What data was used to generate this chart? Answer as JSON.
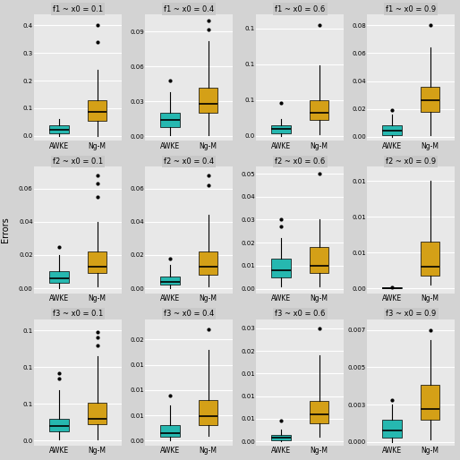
{
  "titles": [
    [
      "f1 ~ x0 = 0.1",
      "f1 ~ x0 = 0.4",
      "f1 ~ x0 = 0.6",
      "f1 ~ x0 = 0.9"
    ],
    [
      "f2 ~ x0 = 0.1",
      "f2 ~ x0 = 0.4",
      "f2 ~ x0 = 0.6",
      "f2 ~ x0 = 0.9"
    ],
    [
      "f3 ~ x0 = 0.1",
      "f3 ~ x0 = 0.4",
      "f3 ~ x0 = 0.6",
      "f3 ~ x0 = 0.9"
    ]
  ],
  "ylabel": "Errors",
  "colors": [
    "#26B8B0",
    "#D4A017"
  ],
  "categories": [
    "AWKE",
    "Ng-M"
  ],
  "fig_bg": "#D3D3D3",
  "panel_bg": "#E8E8E8",
  "title_bg": "#C8C8C8",
  "boxes": {
    "f1": {
      "x0=0.1": {
        "AWKE": {
          "q1": 0.01,
          "median": 0.022,
          "q3": 0.038,
          "whislo": 0.0,
          "whishi": 0.062,
          "fliers": []
        },
        "NgM": {
          "q1": 0.055,
          "median": 0.085,
          "q3": 0.13,
          "whislo": 0.0,
          "whishi": 0.24,
          "fliers": [
            0.34,
            0.4
          ]
        }
      },
      "x0=0.4": {
        "AWKE": {
          "q1": 0.008,
          "median": 0.014,
          "q3": 0.02,
          "whislo": 0.001,
          "whishi": 0.038,
          "fliers": [
            0.048
          ]
        },
        "NgM": {
          "q1": 0.02,
          "median": 0.028,
          "q3": 0.042,
          "whislo": 0.001,
          "whishi": 0.082,
          "fliers": [
            0.092,
            0.1
          ]
        }
      },
      "x0=0.6": {
        "AWKE": {
          "q1": 0.003,
          "median": 0.01,
          "q3": 0.015,
          "whislo": 0.0,
          "whishi": 0.024,
          "fliers": [
            0.046
          ]
        },
        "NgM": {
          "q1": 0.022,
          "median": 0.032,
          "q3": 0.05,
          "whislo": 0.002,
          "whishi": 0.098,
          "fliers": [
            0.155
          ]
        }
      },
      "x0=0.9": {
        "AWKE": {
          "q1": 0.001,
          "median": 0.004,
          "q3": 0.008,
          "whislo": 0.0,
          "whishi": 0.016,
          "fliers": [
            0.019
          ]
        },
        "NgM": {
          "q1": 0.018,
          "median": 0.026,
          "q3": 0.036,
          "whislo": 0.001,
          "whishi": 0.064,
          "fliers": [
            0.08
          ]
        }
      }
    },
    "f2": {
      "x0=0.1": {
        "AWKE": {
          "q1": 0.003,
          "median": 0.006,
          "q3": 0.01,
          "whislo": 0.0,
          "whishi": 0.02,
          "fliers": [
            0.025
          ]
        },
        "NgM": {
          "q1": 0.009,
          "median": 0.013,
          "q3": 0.022,
          "whislo": 0.001,
          "whishi": 0.04,
          "fliers": [
            0.055,
            0.063,
            0.068
          ]
        }
      },
      "x0=0.4": {
        "AWKE": {
          "q1": 0.002,
          "median": 0.004,
          "q3": 0.007,
          "whislo": 0.0,
          "whishi": 0.014,
          "fliers": [
            0.018
          ]
        },
        "NgM": {
          "q1": 0.008,
          "median": 0.013,
          "q3": 0.022,
          "whislo": 0.001,
          "whishi": 0.044,
          "fliers": [
            0.062,
            0.068
          ]
        }
      },
      "x0=0.6": {
        "AWKE": {
          "q1": 0.005,
          "median": 0.008,
          "q3": 0.013,
          "whislo": 0.001,
          "whishi": 0.022,
          "fliers": [
            0.027,
            0.03
          ]
        },
        "NgM": {
          "q1": 0.007,
          "median": 0.01,
          "q3": 0.018,
          "whislo": 0.001,
          "whishi": 0.03,
          "fliers": [
            0.05
          ]
        }
      },
      "x0=0.9": {
        "AWKE": {
          "q1": 0.0,
          "median": 5e-05,
          "q3": 0.0001,
          "whislo": 0.0,
          "whishi": 0.00015,
          "fliers": [
            0.00018
          ]
        },
        "NgM": {
          "q1": 0.0018,
          "median": 0.003,
          "q3": 0.0065,
          "whislo": 0.0005,
          "whishi": 0.015,
          "fliers": []
        }
      }
    },
    "f3": {
      "x0=0.1": {
        "AWKE": {
          "q1": 0.012,
          "median": 0.02,
          "q3": 0.03,
          "whislo": 0.001,
          "whishi": 0.068,
          "fliers": [
            0.085,
            0.092
          ]
        },
        "NgM": {
          "q1": 0.022,
          "median": 0.03,
          "q3": 0.052,
          "whislo": 0.001,
          "whishi": 0.115,
          "fliers": [
            0.13,
            0.14,
            0.148
          ]
        }
      },
      "x0=0.4": {
        "AWKE": {
          "q1": 0.0008,
          "median": 0.0015,
          "q3": 0.003,
          "whislo": 0.0,
          "whishi": 0.007,
          "fliers": [
            0.009
          ]
        },
        "NgM": {
          "q1": 0.003,
          "median": 0.0048,
          "q3": 0.008,
          "whislo": 0.001,
          "whishi": 0.018,
          "fliers": [
            0.022
          ]
        }
      },
      "x0=0.6": {
        "AWKE": {
          "q1": 0.0002,
          "median": 0.0007,
          "q3": 0.0013,
          "whislo": 0.0,
          "whishi": 0.0025,
          "fliers": [
            0.0046
          ]
        },
        "NgM": {
          "q1": 0.004,
          "median": 0.006,
          "q3": 0.009,
          "whislo": 0.001,
          "whishi": 0.019,
          "fliers": [
            0.025
          ]
        }
      },
      "x0=0.9": {
        "AWKE": {
          "q1": 0.0003,
          "median": 0.0008,
          "q3": 0.0015,
          "whislo": 0.0,
          "whishi": 0.0025,
          "fliers": [
            0.0028
          ]
        },
        "NgM": {
          "q1": 0.0015,
          "median": 0.0022,
          "q3": 0.0038,
          "whislo": 0.0002,
          "whishi": 0.0068,
          "fliers": [
            0.0075
          ]
        }
      }
    }
  },
  "yticks": {
    "f1": {
      "x0=0.1": [
        0.0,
        0.1,
        0.2,
        0.3,
        0.4
      ],
      "x0=0.4": [
        0.0,
        0.03,
        0.06,
        0.09
      ],
      "x0=0.6": [
        0.0,
        0.05,
        0.1,
        0.15
      ],
      "x0=0.9": [
        0.0,
        0.02,
        0.04,
        0.06,
        0.08
      ]
    },
    "f2": {
      "x0=0.1": [
        0.0,
        0.02,
        0.04,
        0.06
      ],
      "x0=0.4": [
        0.0,
        0.02,
        0.04,
        0.06
      ],
      "x0=0.6": [
        0.0,
        0.01,
        0.02,
        0.03,
        0.04,
        0.05
      ],
      "x0=0.9": [
        0.0,
        0.005,
        0.01,
        0.015
      ]
    },
    "f3": {
      "x0=0.1": [
        0.0,
        0.05,
        0.1,
        0.15
      ],
      "x0=0.4": [
        0.0,
        0.005,
        0.01,
        0.015,
        0.02
      ],
      "x0=0.6": [
        0.0,
        0.005,
        0.01,
        0.015,
        0.02,
        0.025
      ],
      "x0=0.9": [
        0.0,
        0.0025,
        0.005,
        0.0075
      ]
    }
  },
  "ylims": {
    "f1": {
      "x0=0.1": [
        -0.018,
        0.44
      ],
      "x0=0.4": [
        -0.004,
        0.105
      ],
      "x0=0.6": [
        -0.007,
        0.17
      ],
      "x0=0.9": [
        -0.003,
        0.088
      ]
    },
    "f2": {
      "x0=0.1": [
        -0.003,
        0.073
      ],
      "x0=0.4": [
        -0.003,
        0.073
      ],
      "x0=0.6": [
        -0.002,
        0.053
      ],
      "x0=0.9": [
        -0.0007,
        0.017
      ]
    },
    "f3": {
      "x0=0.1": [
        -0.007,
        0.165
      ],
      "x0=0.4": [
        -0.001,
        0.024
      ],
      "x0=0.6": [
        -0.001,
        0.027
      ],
      "x0=0.9": [
        -0.00025,
        0.0082
      ]
    }
  }
}
